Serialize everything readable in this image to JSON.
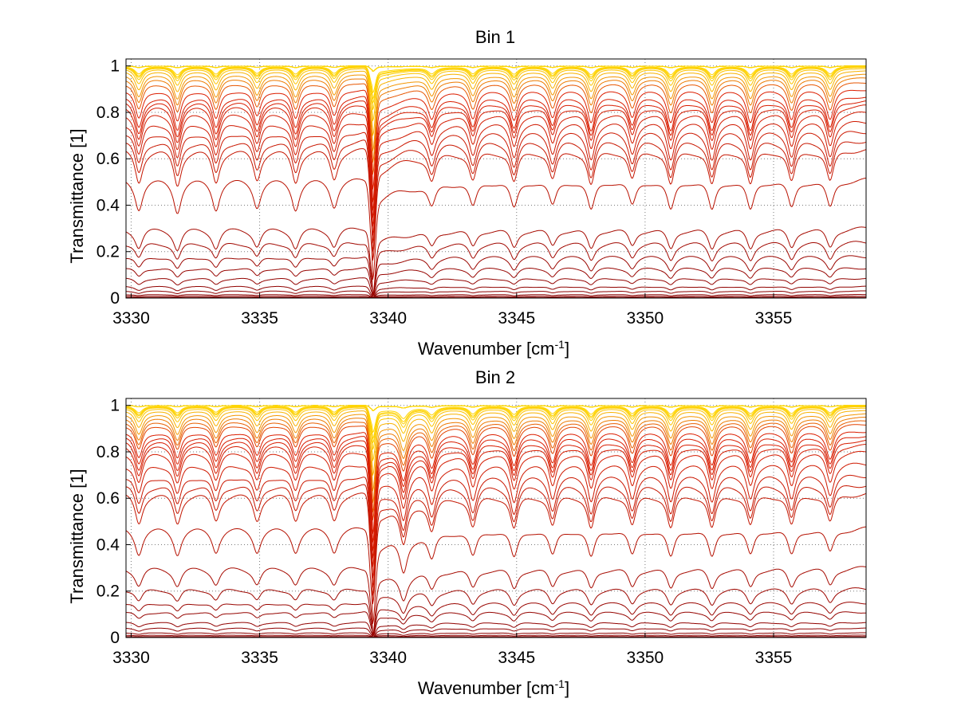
{
  "chart_data": [
    {
      "type": "line",
      "title": "Bin 1",
      "xlabel": "Wavenumber [cm",
      "xlabel_superscript": "-1",
      "xlabel_suffix": "]",
      "ylabel": "Transmittance [1]",
      "xlim": [
        3329.8,
        3358.6
      ],
      "ylim": [
        0,
        1.03
      ],
      "xticks": [
        3330,
        3335,
        3340,
        3345,
        3350,
        3355
      ],
      "xtick_labels": [
        "3330",
        "3335",
        "3340",
        "3345",
        "3350",
        "3355"
      ],
      "yticks": [
        0,
        0.2,
        0.4,
        0.6,
        0.8,
        1
      ],
      "ytick_labels": [
        "0",
        "0.2",
        "0.4",
        "0.6",
        "0.8",
        "1"
      ],
      "grid": true,
      "colormap": "autumn, dark red (#8b0000) for low-transmittance curves to yellow (#ffd700) for high-transmittance curves",
      "weak_lines": [
        3330.3,
        3331.8,
        3333.3,
        3334.9,
        3336.4,
        3337.9,
        3341.7,
        3343.3,
        3344.9,
        3346.4,
        3347.9,
        3349.5,
        3351.0,
        3352.6,
        3354.1,
        3355.7,
        3357.2
      ],
      "weak_line_depths": [
        0.55,
        0.6,
        0.55,
        0.5,
        0.55,
        0.5,
        0.45,
        0.5,
        0.55,
        0.5,
        0.6,
        0.5,
        0.6,
        0.6,
        0.6,
        0.55,
        0.55
      ],
      "strong_line": 3339.4,
      "series_continuum_levels": [
        1.0,
        1.0,
        1.0,
        1.0,
        1.0,
        1.0,
        1.0,
        1.0,
        1.0,
        1.0,
        1.0,
        0.999,
        0.998,
        0.997,
        0.995,
        0.99,
        0.98,
        0.965,
        0.95,
        0.93,
        0.9,
        0.87,
        0.85,
        0.83,
        0.8,
        0.76,
        0.72,
        0.68,
        0.64,
        0.51,
        0.3,
        0.24,
        0.18,
        0.13,
        0.085,
        0.05,
        0.03,
        0.015,
        0.008,
        0.003,
        0.001
      ]
    },
    {
      "type": "line",
      "title": "Bin 2",
      "xlabel": "Wavenumber [cm",
      "xlabel_superscript": "-1",
      "xlabel_suffix": "]",
      "ylabel": "Transmittance [1]",
      "xlim": [
        3329.8,
        3358.6
      ],
      "ylim": [
        0,
        1.03
      ],
      "xticks": [
        3330,
        3335,
        3340,
        3345,
        3350,
        3355
      ],
      "xtick_labels": [
        "3330",
        "3335",
        "3340",
        "3345",
        "3350",
        "3355"
      ],
      "yticks": [
        0,
        0.2,
        0.4,
        0.6,
        0.8,
        1
      ],
      "ytick_labels": [
        "0",
        "0.2",
        "0.4",
        "0.6",
        "0.8",
        "1"
      ],
      "grid": true,
      "colormap": "autumn, dark red (#8b0000) for low-transmittance curves to yellow (#ffd700) for high-transmittance curves",
      "weak_lines": [
        3330.3,
        3331.8,
        3333.3,
        3334.9,
        3336.4,
        3337.9,
        3340.6,
        3341.7,
        3343.3,
        3344.9,
        3346.4,
        3347.9,
        3349.5,
        3351.0,
        3352.6,
        3354.1,
        3355.7,
        3357.2
      ],
      "weak_line_depths": [
        0.5,
        0.5,
        0.45,
        0.45,
        0.45,
        0.45,
        0.7,
        0.55,
        0.55,
        0.6,
        0.55,
        0.6,
        0.55,
        0.6,
        0.6,
        0.55,
        0.55,
        0.5
      ],
      "strong_line": 3339.4,
      "series_continuum_levels": [
        1.0,
        1.0,
        1.0,
        1.0,
        1.0,
        1.0,
        1.0,
        1.0,
        1.0,
        1.0,
        0.999,
        0.998,
        0.997,
        0.995,
        0.99,
        0.98,
        0.965,
        0.95,
        0.935,
        0.92,
        0.89,
        0.87,
        0.85,
        0.83,
        0.8,
        0.75,
        0.7,
        0.66,
        0.62,
        0.47,
        0.3,
        0.21,
        0.15,
        0.11,
        0.065,
        0.04,
        0.02,
        0.01,
        0.004,
        0.001
      ]
    }
  ]
}
